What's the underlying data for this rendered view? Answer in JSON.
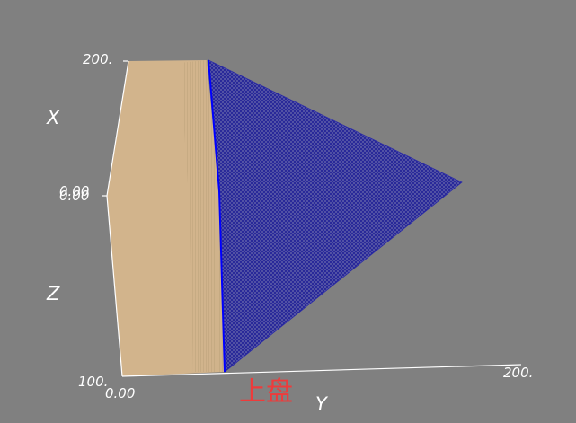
{
  "axes": {
    "x": {
      "label": "X",
      "tick_top": "200.",
      "tick_mid_a": "0.00",
      "tick_mid_b": "0.00"
    },
    "z": {
      "label": "Z",
      "tick_bottom": "100."
    },
    "y": {
      "label": "Y",
      "tick_start": "0.00",
      "tick_end": "200."
    }
  },
  "caption": "上盘",
  "colors": {
    "background": "#808080",
    "solid_surface": "#d2b48c",
    "wireframe": "#1a1a99",
    "fault_edge": "#0000ff",
    "axis_line": "#ffffff",
    "caption": "#ee3b3b"
  }
}
